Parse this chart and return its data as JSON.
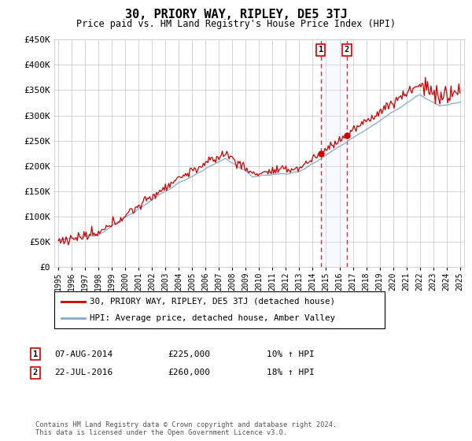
{
  "title": "30, PRIORY WAY, RIPLEY, DE5 3TJ",
  "subtitle": "Price paid vs. HM Land Registry's House Price Index (HPI)",
  "ylim": [
    0,
    450000
  ],
  "yticks": [
    0,
    50000,
    100000,
    150000,
    200000,
    250000,
    300000,
    350000,
    400000,
    450000
  ],
  "ytick_labels": [
    "£0",
    "£50K",
    "£100K",
    "£150K",
    "£200K",
    "£250K",
    "£300K",
    "£350K",
    "£400K",
    "£450K"
  ],
  "year_start": 1995,
  "year_end": 2025,
  "transaction1_date": 2014.6,
  "transaction1_price": 225000,
  "transaction1_text": "07-AUG-2014",
  "transaction1_hpi_text": "10% ↑ HPI",
  "transaction2_date": 2016.55,
  "transaction2_price": 260000,
  "transaction2_text": "22-JUL-2016",
  "transaction2_hpi_text": "18% ↑ HPI",
  "legend_line1": "30, PRIORY WAY, RIPLEY, DE5 3TJ (detached house)",
  "legend_line2": "HPI: Average price, detached house, Amber Valley",
  "footer": "Contains HM Land Registry data © Crown copyright and database right 2024.\nThis data is licensed under the Open Government Licence v3.0.",
  "line_color_red": "#cc0000",
  "line_color_blue": "#88aacc",
  "shaded_color": "#ddeeff",
  "transaction_box_color": "#cc0000",
  "grid_color": "#cccccc",
  "bg_color": "#ffffff"
}
